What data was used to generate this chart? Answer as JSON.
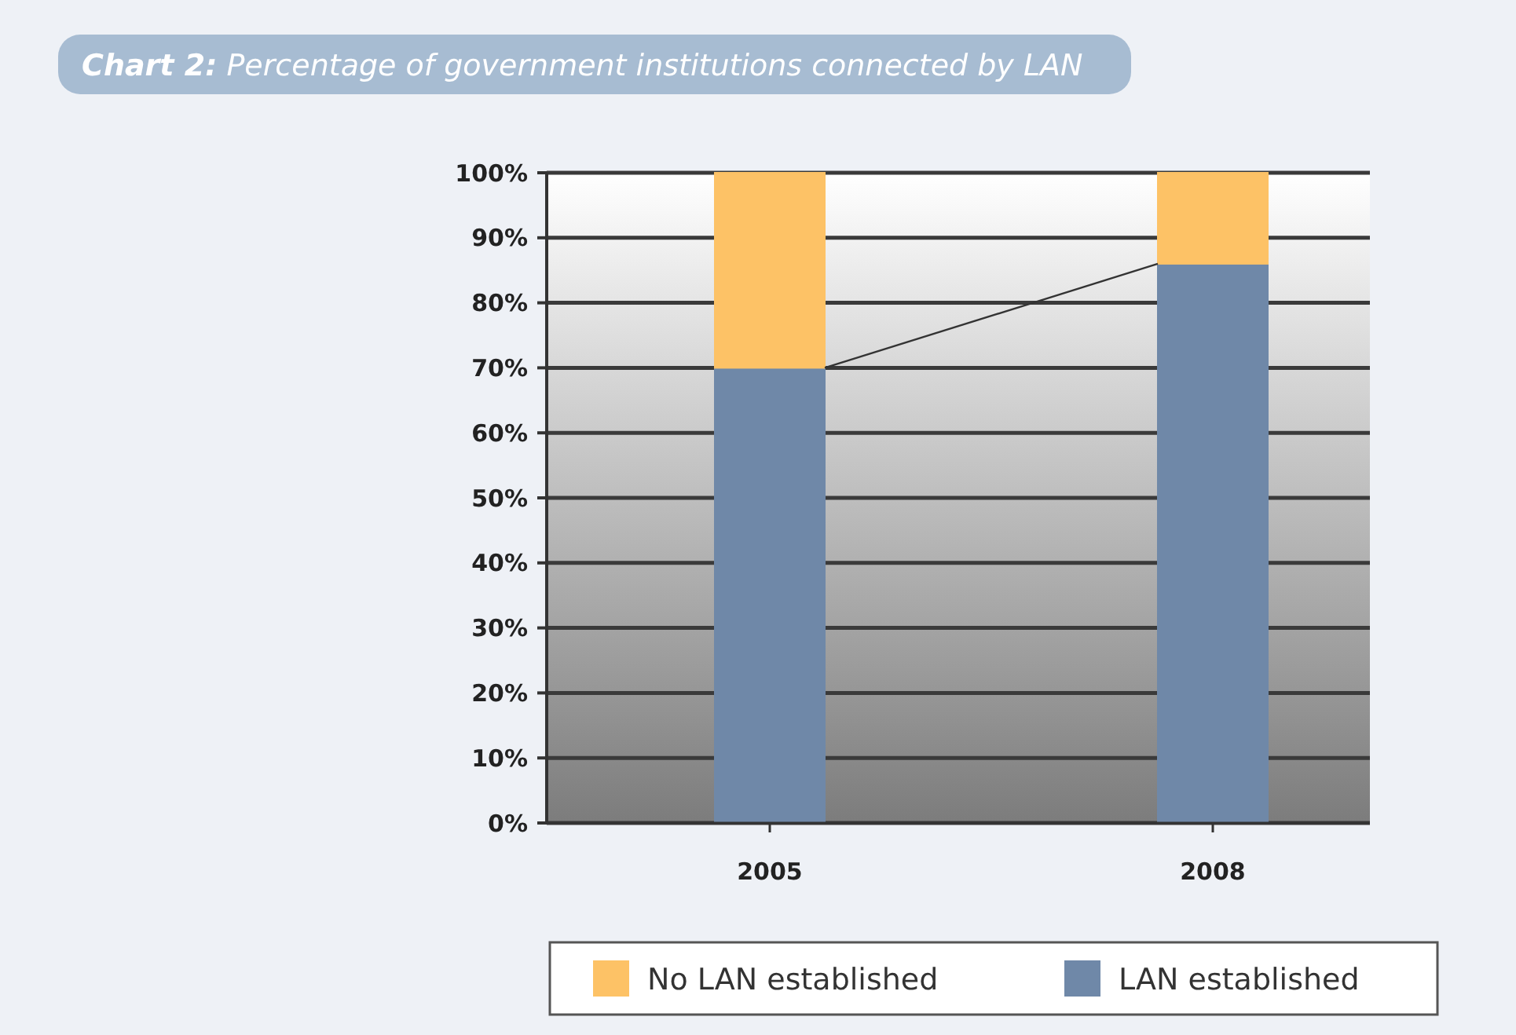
{
  "chart_data": {
    "type": "bar",
    "title": "Chart 2: Percentage of government institutions connected by LAN",
    "categories": [
      "2005",
      "2008"
    ],
    "stacked": true,
    "series": [
      {
        "name": "LAN established",
        "color": "#6f88a8",
        "values": [
          70,
          86
        ]
      },
      {
        "name": "No LAN established",
        "color": "#fdc266",
        "values": [
          30,
          14
        ]
      }
    ],
    "ylim": [
      0,
      100
    ],
    "yticks": [
      {
        "value": 0,
        "label": "0%"
      },
      {
        "value": 10,
        "label": "10%"
      },
      {
        "value": 20,
        "label": "20%"
      },
      {
        "value": 30,
        "label": "30%"
      },
      {
        "value": 40,
        "label": "40%"
      },
      {
        "value": 50,
        "label": "50%"
      },
      {
        "value": 60,
        "label": "60%"
      },
      {
        "value": 70,
        "label": "70%"
      },
      {
        "value": 80,
        "label": "80%"
      },
      {
        "value": 90,
        "label": "90%"
      },
      {
        "value": 100,
        "label": "100%"
      }
    ],
    "grid": "y",
    "legend": "bottom"
  }
}
